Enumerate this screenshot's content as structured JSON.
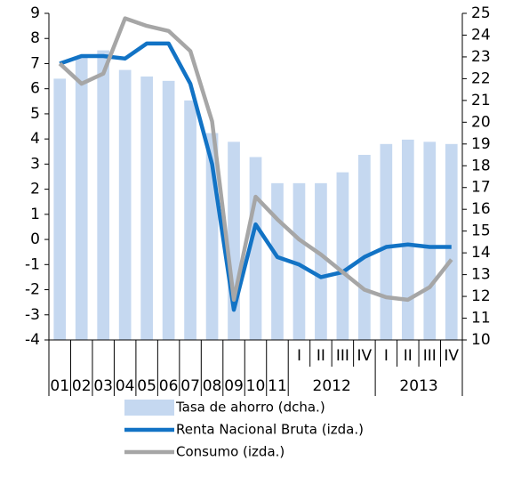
{
  "chart_data": {
    "type": "bar_line",
    "categories": [
      "01",
      "02",
      "03",
      "04",
      "05",
      "06",
      "07",
      "08",
      "09",
      "10",
      "11",
      "I",
      "II",
      "III",
      "IV",
      "I",
      "II",
      "III",
      "IV"
    ],
    "category_groups": [
      null,
      null,
      null,
      null,
      null,
      null,
      null,
      null,
      null,
      null,
      null,
      "2012",
      "2012",
      "2012",
      "2012",
      "2013",
      "2013",
      "2013",
      "2013"
    ],
    "series": [
      {
        "name": "Tasa de ahorro  (dcha.)",
        "type": "bar",
        "axis": "y2",
        "color": "#c5d8f0",
        "values": [
          22.0,
          23.0,
          23.3,
          22.4,
          22.1,
          21.9,
          21.0,
          19.5,
          19.1,
          18.4,
          17.2,
          17.2,
          17.2,
          17.7,
          18.5,
          19.0,
          19.2,
          19.1,
          19.0
        ]
      },
      {
        "name": "Renta Nacional Bruta (izda.)",
        "type": "line",
        "color": "#1273c5",
        "values": [
          7.0,
          7.3,
          7.3,
          7.2,
          7.8,
          7.8,
          6.2,
          3.0,
          -2.8,
          0.6,
          -0.7,
          -1.0,
          -1.5,
          -1.3,
          -0.7,
          -0.3,
          -0.2,
          -0.3,
          -0.3
        ]
      },
      {
        "name": "Consumo (izda.)",
        "type": "line",
        "color": "#a6a6a6",
        "values": [
          7.0,
          6.2,
          6.6,
          8.8,
          8.5,
          8.3,
          7.5,
          4.7,
          -2.4,
          1.7,
          0.8,
          0.0,
          -0.6,
          -1.3,
          -2.0,
          -2.3,
          -2.4,
          -1.9,
          -0.8
        ]
      }
    ],
    "ylim": [
      -4,
      9
    ],
    "yticks": [
      -4,
      -3,
      -2,
      -1,
      0,
      1,
      2,
      3,
      4,
      5,
      6,
      7,
      8,
      9
    ],
    "y2lim": [
      10,
      25
    ],
    "y2ticks": [
      10,
      11,
      12,
      13,
      14,
      15,
      16,
      17,
      18,
      19,
      20,
      21,
      22,
      23,
      24,
      25
    ]
  }
}
